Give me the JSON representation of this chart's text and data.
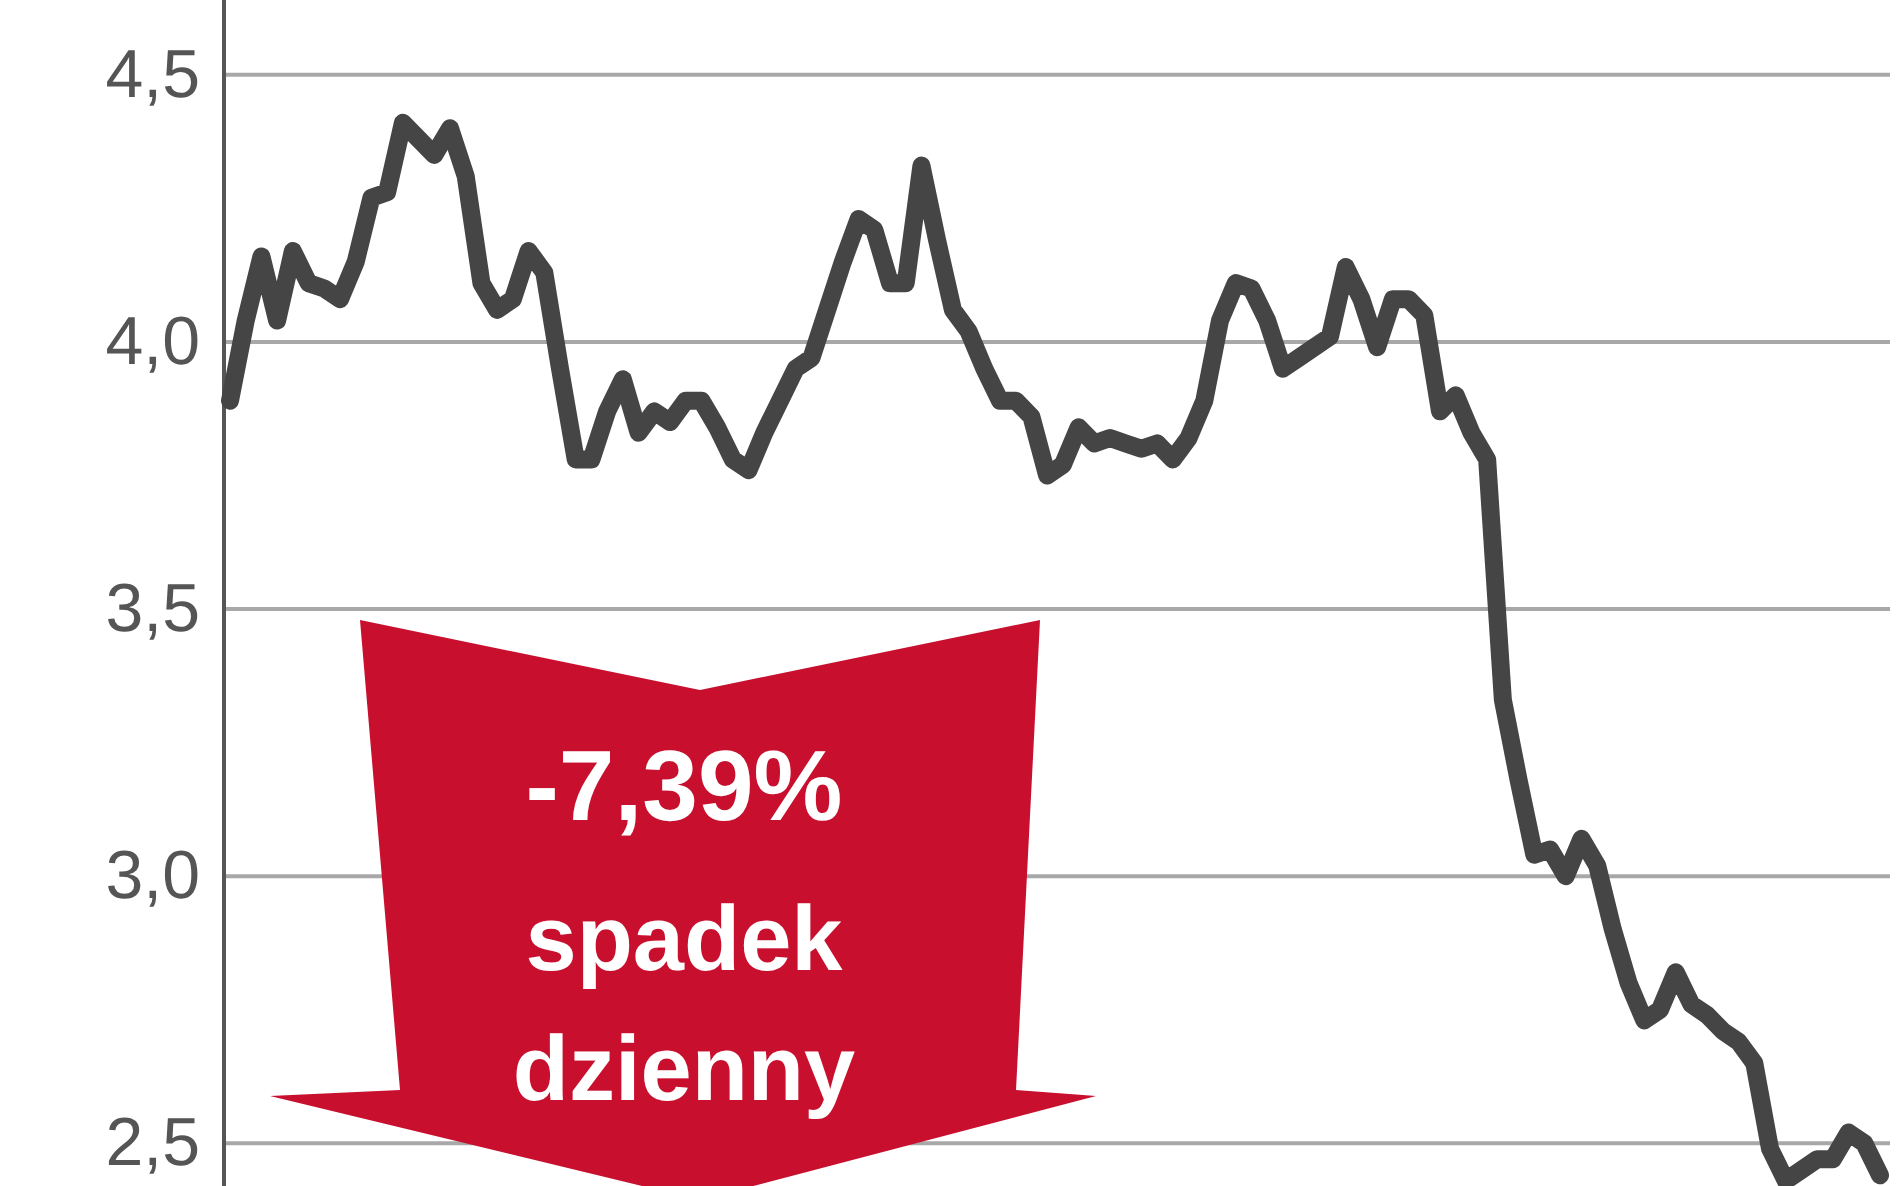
{
  "chart_data": {
    "type": "line",
    "categories": [
      null,
      null,
      null,
      null,
      null,
      null,
      null,
      null,
      null,
      null,
      null,
      null,
      null,
      null,
      null,
      null,
      null,
      null,
      null,
      null,
      null,
      null,
      null,
      null,
      null,
      null,
      null,
      null,
      null,
      null,
      null,
      null,
      null,
      null,
      null,
      null,
      null,
      null,
      null,
      null,
      null,
      null,
      null,
      null,
      null,
      null,
      null,
      null,
      null,
      null,
      null,
      null,
      null,
      null,
      null,
      null,
      null,
      null,
      null,
      null,
      null,
      null,
      null,
      null,
      null,
      null,
      null,
      null,
      null,
      null,
      null,
      null,
      null,
      null,
      null,
      null,
      null,
      null,
      null,
      null,
      null,
      null,
      null,
      null,
      null,
      null,
      null,
      null,
      null,
      null,
      null,
      null,
      null,
      null,
      null,
      null,
      null,
      null,
      null,
      null,
      null,
      null,
      null,
      null,
      null,
      null
    ],
    "series": [
      {
        "color": "#454545",
        "values": [
          3.89,
          4.04,
          4.16,
          4.04,
          4.17,
          4.11,
          4.1,
          4.08,
          4.15,
          4.27,
          4.28,
          4.41,
          4.38,
          4.35,
          4.4,
          4.31,
          4.11,
          4.06,
          4.08,
          4.17,
          4.13,
          3.95,
          3.78,
          3.78,
          3.87,
          3.93,
          3.83,
          3.87,
          3.85,
          3.89,
          3.89,
          3.84,
          3.78,
          3.76,
          3.83,
          3.89,
          3.95,
          3.97,
          4.06,
          4.15,
          4.23,
          4.21,
          4.11,
          4.11,
          4.33,
          4.19,
          4.06,
          4.02,
          3.95,
          3.89,
          3.89,
          3.86,
          3.75,
          3.77,
          3.84,
          3.81,
          3.82,
          3.81,
          3.8,
          3.81,
          3.78,
          3.82,
          3.89,
          4.04,
          4.11,
          4.1,
          4.04,
          3.95,
          3.97,
          3.99,
          4.01,
          4.14,
          4.08,
          3.99,
          4.08,
          4.08,
          4.05,
          3.87,
          3.9,
          3.83,
          3.78,
          3.33,
          3.18,
          3.04,
          3.05,
          3.0,
          3.07,
          3.02,
          2.9,
          2.8,
          2.73,
          2.75,
          2.82,
          2.76,
          2.74,
          2.71,
          2.69,
          2.65,
          2.49,
          2.43,
          2.45,
          2.47,
          2.47,
          2.52,
          2.5,
          2.44
        ]
      }
    ],
    "ylim": [
      2.42,
      4.64
    ],
    "yticks": [
      {
        "value": 2.5,
        "label": "2,5"
      },
      {
        "value": 3.0,
        "label": "3,0"
      },
      {
        "value": 3.5,
        "label": "3,5"
      },
      {
        "value": 4.0,
        "label": "4,0"
      },
      {
        "value": 4.5,
        "label": "4,5"
      }
    ],
    "grid": "y",
    "tick_labels": "y",
    "line_style": "solid",
    "marker": "none",
    "annotations": [
      "-7,39%",
      "spadek",
      "dzienny"
    ]
  }
}
